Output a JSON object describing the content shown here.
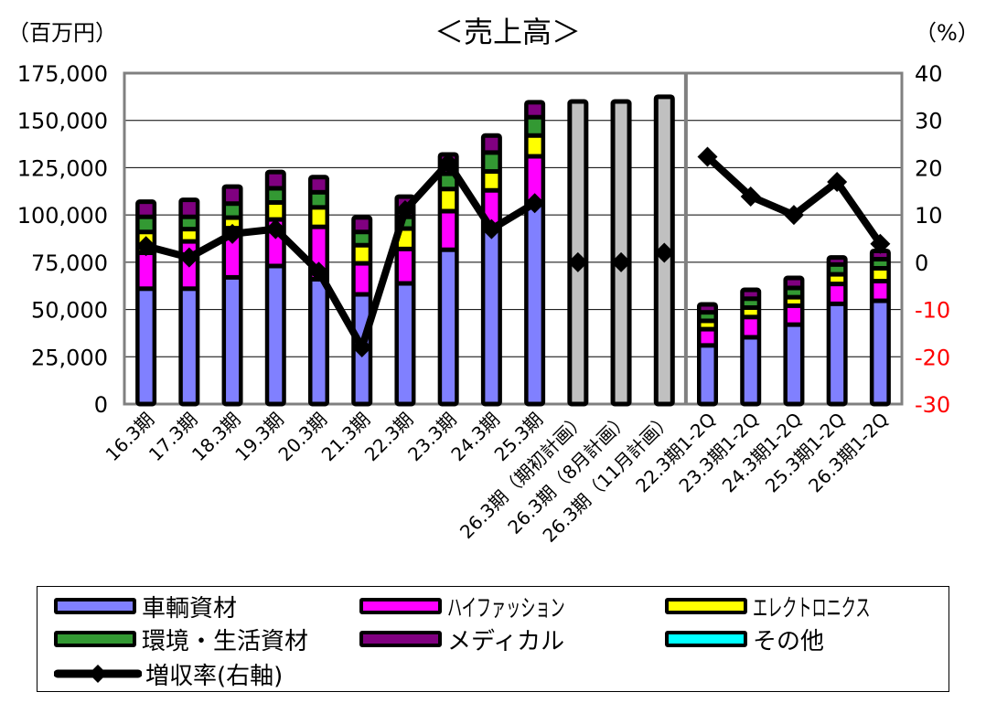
{
  "chart_data": {
    "type": "bar",
    "title": "＜売上高＞",
    "ylabel_left": "（百万円）",
    "ylabel_right": "（%）",
    "ylim": [
      0,
      175000
    ],
    "ylim_right": [
      -30,
      40
    ],
    "yticks_left": [
      "0",
      "25,000",
      "50,000",
      "75,000",
      "100,000",
      "125,000",
      "150,000",
      "175,000"
    ],
    "yticks_right": [
      "-30",
      "-20",
      "-10",
      "0",
      "10",
      "20",
      "30",
      "40"
    ],
    "grid": true,
    "legend_position": "bottom",
    "categories": [
      "16.3期",
      "17.3期",
      "18.3期",
      "19.3期",
      "20.3期",
      "21.3期",
      "22.3期",
      "23.3期",
      "24.3期",
      "25.3期",
      "26.3期（期初計画）",
      "26.3期（8月計画）",
      "26.3期（11月計画）",
      "22.3期1-2Q",
      "23.3期1-2Q",
      "24.3期1-2Q",
      "25.3期1-2Q",
      "26.3期1-2Q"
    ],
    "series": [
      {
        "name": "車輌資材",
        "color": "#8080FF",
        "values": [
          61000,
          61000,
          67000,
          73000,
          66000,
          58000,
          63800,
          81600,
          94000,
          107000,
          null,
          null,
          null,
          31000,
          35300,
          42000,
          53000,
          54600
        ]
      },
      {
        "name": "ハイファッション",
        "color": "#FF00FF",
        "values": [
          19000,
          25000,
          26000,
          24600,
          27700,
          16400,
          18200,
          20400,
          19000,
          24000,
          null,
          null,
          null,
          8600,
          10700,
          10000,
          10500,
          10400
        ]
      },
      {
        "name": "エレクトロニクス",
        "color": "#FFFF00",
        "values": [
          11000,
          6500,
          5600,
          9000,
          10300,
          9600,
          10800,
          11700,
          10000,
          11000,
          null,
          null,
          null,
          4400,
          5000,
          4500,
          5100,
          6800
        ]
      },
      {
        "name": "環境・生活資材",
        "color": "#339933",
        "values": [
          8000,
          6500,
          7400,
          7500,
          8000,
          7000,
          6200,
          8100,
          10000,
          9700,
          null,
          null,
          null,
          4500,
          4700,
          4900,
          5200,
          4800
        ]
      },
      {
        "name": "メディカル",
        "color": "#800080",
        "values": [
          8000,
          9000,
          9000,
          8600,
          8000,
          7700,
          10700,
          10200,
          9000,
          7900,
          null,
          null,
          null,
          4200,
          4700,
          5300,
          3700,
          4400
        ]
      },
      {
        "name": "その他",
        "color": "#00FFFF",
        "values": [
          0,
          0,
          0,
          0,
          0,
          0,
          0,
          0,
          0,
          0,
          null,
          null,
          null,
          0,
          0,
          0,
          0,
          0
        ]
      }
    ],
    "plan_series": {
      "color": "#C0C0C0",
      "values": [
        null,
        null,
        null,
        null,
        null,
        null,
        null,
        null,
        null,
        null,
        160000,
        160000,
        162500,
        null,
        null,
        null,
        null,
        null
      ]
    },
    "line_series": {
      "name": "増収率(右軸)",
      "axis": "right",
      "color": "#000000",
      "values": [
        3.4,
        1,
        6,
        7,
        -2,
        -18,
        11,
        21,
        7,
        12.5,
        0,
        0,
        2,
        22.3,
        13.9,
        10,
        17,
        3.9
      ]
    },
    "line_groups": [
      [
        0,
        9
      ],
      [
        10
      ],
      [
        11
      ],
      [
        12
      ],
      [
        13,
        17
      ]
    ],
    "negative_tick_color": "#FF0000"
  }
}
